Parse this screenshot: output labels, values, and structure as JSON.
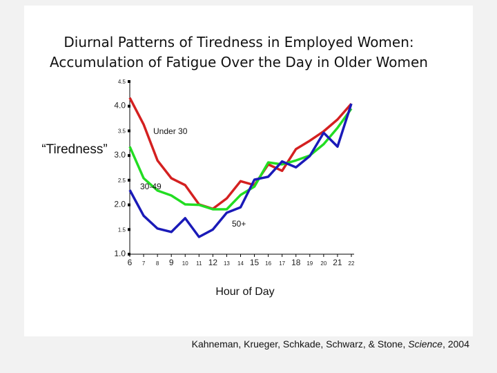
{
  "chart_data": {
    "type": "line",
    "title": [
      "Diurnal Patterns of Tiredness in Employed Women:",
      "Accumulation of Fatigue Over the Day in Older Women"
    ],
    "y_label": "“Tiredness”",
    "x_label": "Hour of Day",
    "x": [
      6,
      7,
      8,
      9,
      10,
      11,
      12,
      13,
      14,
      15,
      16,
      17,
      18,
      19,
      20,
      21,
      22
    ],
    "series": [
      {
        "name": "Under 30",
        "color": "#d42020",
        "values": [
          4.17,
          3.63,
          2.9,
          2.54,
          2.4,
          2.01,
          1.92,
          2.13,
          2.48,
          2.4,
          2.82,
          2.69,
          3.13,
          3.3,
          3.49,
          3.73,
          4.05
        ]
      },
      {
        "name": "30-49",
        "color": "#22dd22",
        "values": [
          3.18,
          2.54,
          2.29,
          2.19,
          2.01,
          2.0,
          1.91,
          1.91,
          2.2,
          2.37,
          2.86,
          2.82,
          2.9,
          3.0,
          3.23,
          3.56,
          3.95
        ]
      },
      {
        "name": "50+",
        "color": "#1a1ab8",
        "values": [
          2.3,
          1.78,
          1.52,
          1.45,
          1.73,
          1.35,
          1.5,
          1.84,
          1.95,
          2.51,
          2.57,
          2.88,
          2.76,
          2.99,
          3.46,
          3.18,
          4.05
        ]
      }
    ],
    "xlim": [
      6,
      22
    ],
    "xticks": [
      6,
      7,
      8,
      9,
      10,
      11,
      12,
      13,
      14,
      15,
      16,
      17,
      18,
      19,
      20,
      21,
      22
    ],
    "ylim": [
      1,
      4.5
    ],
    "yticks": [
      {
        "value": 1,
        "label": "1.0"
      },
      {
        "value": 1.5,
        "label": "1.5"
      },
      {
        "value": 2,
        "label": "2.0"
      },
      {
        "value": 2.5,
        "label": "2.5"
      },
      {
        "value": 3,
        "label": "3.0"
      },
      {
        "value": 3.5,
        "label": "3.5"
      },
      {
        "value": 4,
        "label": "4.0"
      },
      {
        "value": 4.5,
        "label": "4.5"
      }
    ],
    "source": [
      "Kahneman, Krueger, Schkade, Schwarz, & Stone, ",
      "Science",
      ", 2004"
    ]
  }
}
